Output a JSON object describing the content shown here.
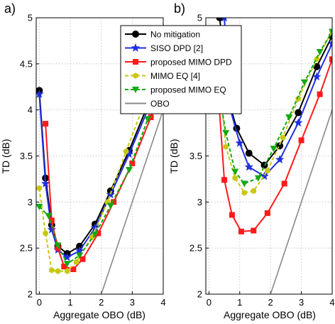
{
  "chart_data": [
    {
      "type": "line",
      "panel_label": "a)",
      "xlabel": "Aggregate OBO (dB)",
      "ylabel": "TD (dB)",
      "xlim": [
        -0.1,
        4
      ],
      "ylim": [
        2,
        5
      ],
      "xticks": [
        "0",
        "1",
        "2",
        "3",
        "4"
      ],
      "yticks": [
        "2",
        "2.5",
        "3",
        "3.5",
        "4",
        "4.5",
        "5"
      ],
      "grid": true,
      "legend": {
        "position": "top-right",
        "entries": [
          "No mitigation",
          "SISO DPD [2]",
          "proposed MIMO DPD",
          "MIMO EQ [4]",
          "proposed MIMO EQ",
          "OBO"
        ]
      },
      "series": [
        {
          "name": "No mitigation",
          "color": "#000000",
          "style": "solid",
          "marker": "circle",
          "x": [
            0.0,
            0.2,
            0.4,
            0.6,
            0.9,
            1.3,
            1.8,
            2.3,
            2.9,
            3.5,
            4.0
          ],
          "y": [
            4.21,
            3.26,
            2.75,
            2.52,
            2.44,
            2.52,
            2.76,
            3.12,
            3.56,
            4.05,
            4.5
          ]
        },
        {
          "name": "SISO DPD [2]",
          "color": "#1f2fe0",
          "style": "solid",
          "marker": "star",
          "x": [
            0.0,
            0.2,
            0.4,
            0.6,
            0.9,
            1.3,
            1.8,
            2.3,
            2.9,
            3.5,
            4.0
          ],
          "y": [
            4.17,
            3.2,
            2.7,
            2.48,
            2.4,
            2.47,
            2.72,
            3.08,
            3.52,
            4.0,
            4.45
          ]
        },
        {
          "name": "proposed MIMO DPD",
          "color": "#ff1a1a",
          "style": "solid",
          "marker": "square",
          "x": [
            0.2,
            0.4,
            0.6,
            0.8,
            1.1,
            1.4,
            1.9,
            2.4,
            3.0,
            3.6,
            4.0
          ],
          "y": [
            3.85,
            2.8,
            2.5,
            2.3,
            2.27,
            2.38,
            2.66,
            3.0,
            3.42,
            3.92,
            4.3
          ]
        },
        {
          "name": "MIMO EQ [4]",
          "color": "#c8c814",
          "style": "dashed",
          "marker": "hexagon",
          "x": [
            0.0,
            0.2,
            0.4,
            0.6,
            0.9,
            1.2,
            1.7,
            2.2,
            2.8,
            3.4,
            4.0
          ],
          "y": [
            3.15,
            2.66,
            2.26,
            2.25,
            2.25,
            2.35,
            2.62,
            3.0,
            3.55,
            4.08,
            4.6
          ]
        },
        {
          "name": "proposed MIMO EQ",
          "color": "#13a813",
          "style": "dashed",
          "marker": "triangle-down",
          "x": [
            0.0,
            0.3,
            0.6,
            0.9,
            1.3,
            1.8,
            2.3,
            2.9,
            3.5,
            4.0
          ],
          "y": [
            2.95,
            2.85,
            2.53,
            2.33,
            2.42,
            2.65,
            2.96,
            3.35,
            3.9,
            4.35
          ]
        },
        {
          "name": "OBO",
          "color": "#8a8a8a",
          "style": "solid",
          "marker": "none",
          "x": [
            2.0,
            4.0
          ],
          "y": [
            2.0,
            4.0
          ]
        }
      ]
    },
    {
      "type": "line",
      "panel_label": "b)",
      "xlabel": "Aggregate OBO (dB)",
      "ylabel": "TD (dB)",
      "xlim": [
        -0.1,
        4
      ],
      "ylim": [
        2,
        5
      ],
      "xticks": [
        "0",
        "1",
        "2",
        "3",
        "4"
      ],
      "yticks": [
        "2",
        "2.5",
        "3",
        "3.5",
        "4",
        "4.5",
        "5"
      ],
      "grid": true,
      "series": [
        {
          "name": "No mitigation",
          "color": "#000000",
          "style": "solid",
          "marker": "circle",
          "x": [
            0.35,
            0.6,
            0.9,
            1.3,
            1.8,
            2.3,
            2.9,
            3.5,
            4.0
          ],
          "y": [
            5.0,
            4.15,
            3.8,
            3.53,
            3.4,
            3.61,
            3.97,
            4.47,
            4.8
          ]
        },
        {
          "name": "SISO DPD [2]",
          "color": "#1f2fe0",
          "style": "solid",
          "marker": "star",
          "x": [
            0.5,
            0.7,
            1.0,
            1.3,
            1.8,
            2.3,
            2.9,
            3.5,
            4.0
          ],
          "y": [
            5.0,
            4.0,
            3.64,
            3.38,
            3.28,
            3.46,
            3.86,
            4.36,
            4.72
          ]
        },
        {
          "name": "proposed MIMO DPD",
          "color": "#ff1a1a",
          "style": "solid",
          "marker": "square",
          "x": [
            0.3,
            0.5,
            0.75,
            1.05,
            1.45,
            1.9,
            2.45,
            3.0,
            3.6,
            4.0
          ],
          "y": [
            4.2,
            3.24,
            2.86,
            2.68,
            2.69,
            2.88,
            3.2,
            3.67,
            4.17,
            4.55
          ]
        },
        {
          "name": "MIMO EQ [4]",
          "color": "#c8c814",
          "style": "dashed",
          "marker": "hexagon",
          "x": [
            0.3,
            0.55,
            0.85,
            1.15,
            1.45,
            1.9,
            2.4,
            2.9,
            3.5,
            4.0
          ],
          "y": [
            4.47,
            3.6,
            3.26,
            3.1,
            3.12,
            3.34,
            3.7,
            4.12,
            4.55,
            4.85
          ]
        },
        {
          "name": "proposed MIMO EQ",
          "color": "#13a813",
          "style": "dashed",
          "marker": "triangle-down",
          "x": [
            0.3,
            0.55,
            0.85,
            1.15,
            1.6,
            2.1,
            2.6,
            3.1,
            3.6,
            4.0
          ],
          "y": [
            4.25,
            3.75,
            3.33,
            3.2,
            3.26,
            3.58,
            3.92,
            4.3,
            4.63,
            4.85
          ]
        },
        {
          "name": "OBO",
          "color": "#8a8a8a",
          "style": "solid",
          "marker": "none",
          "x": [
            2.0,
            4.0
          ],
          "y": [
            2.0,
            4.0
          ]
        }
      ]
    }
  ]
}
